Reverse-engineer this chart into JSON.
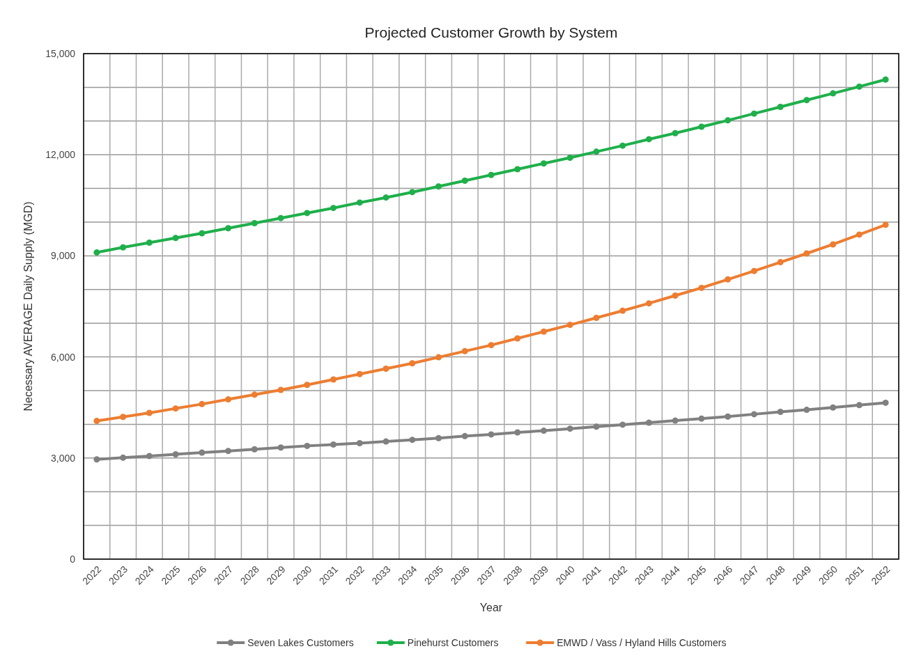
{
  "chart_data": {
    "type": "line",
    "title": "Projected Customer Growth by System",
    "xlabel": "Year",
    "ylabel": "Necessary AVERAGE Daily Supply (MGD)",
    "categories": [
      "2022",
      "2023",
      "2024",
      "2025",
      "2026",
      "2027",
      "2028",
      "2029",
      "2030",
      "2031",
      "2032",
      "2033",
      "2034",
      "2035",
      "2036",
      "2037",
      "2038",
      "2039",
      "2040",
      "2041",
      "2042",
      "2043",
      "2044",
      "2045",
      "2046",
      "2047",
      "2048",
      "2049",
      "2050",
      "2051",
      "2052"
    ],
    "series": [
      {
        "name": "Seven Lakes Customers",
        "color": "#808080",
        "values": [
          2960,
          3010,
          3060,
          3110,
          3160,
          3210,
          3260,
          3310,
          3360,
          3400,
          3440,
          3490,
          3540,
          3590,
          3650,
          3700,
          3760,
          3810,
          3870,
          3930,
          3990,
          4050,
          4110,
          4170,
          4230,
          4300,
          4370,
          4430,
          4500,
          4570,
          4640
        ]
      },
      {
        "name": "Pinehurst Customers",
        "color": "#1faf4b",
        "values": [
          9100,
          9250,
          9390,
          9530,
          9670,
          9820,
          9970,
          10120,
          10270,
          10420,
          10580,
          10730,
          10890,
          11060,
          11230,
          11400,
          11570,
          11740,
          11910,
          12090,
          12270,
          12460,
          12640,
          12830,
          13020,
          13220,
          13420,
          13620,
          13820,
          14020,
          14230
        ]
      },
      {
        "name": "EMWD / Vass / Hyland Hills Customers",
        "color": "#ed7d31",
        "values": [
          4100,
          4220,
          4340,
          4470,
          4600,
          4740,
          4880,
          5020,
          5170,
          5330,
          5490,
          5650,
          5810,
          5990,
          6170,
          6350,
          6550,
          6750,
          6950,
          7160,
          7370,
          7590,
          7820,
          8050,
          8300,
          8550,
          8810,
          9070,
          9340,
          9630,
          9920
        ]
      }
    ],
    "ylim": [
      0,
      15000
    ],
    "yticks": [
      {
        "value": 0,
        "label": "0"
      },
      {
        "value": 1000,
        "label": null
      },
      {
        "value": 2000,
        "label": null
      },
      {
        "value": 3000,
        "label": "3,000"
      },
      {
        "value": 4000,
        "label": null
      },
      {
        "value": 5000,
        "label": null
      },
      {
        "value": 6000,
        "label": "6,000"
      },
      {
        "value": 7000,
        "label": null
      },
      {
        "value": 8000,
        "label": null
      },
      {
        "value": 9000,
        "label": "9,000"
      },
      {
        "value": 10000,
        "label": null
      },
      {
        "value": 11000,
        "label": null
      },
      {
        "value": 12000,
        "label": "12,000"
      },
      {
        "value": 13000,
        "label": null
      },
      {
        "value": 14000,
        "label": null
      },
      {
        "value": 15000,
        "label": "15,000"
      }
    ],
    "grid": true,
    "legend": "bottom",
    "marker": "circle",
    "line_style": "solid"
  }
}
